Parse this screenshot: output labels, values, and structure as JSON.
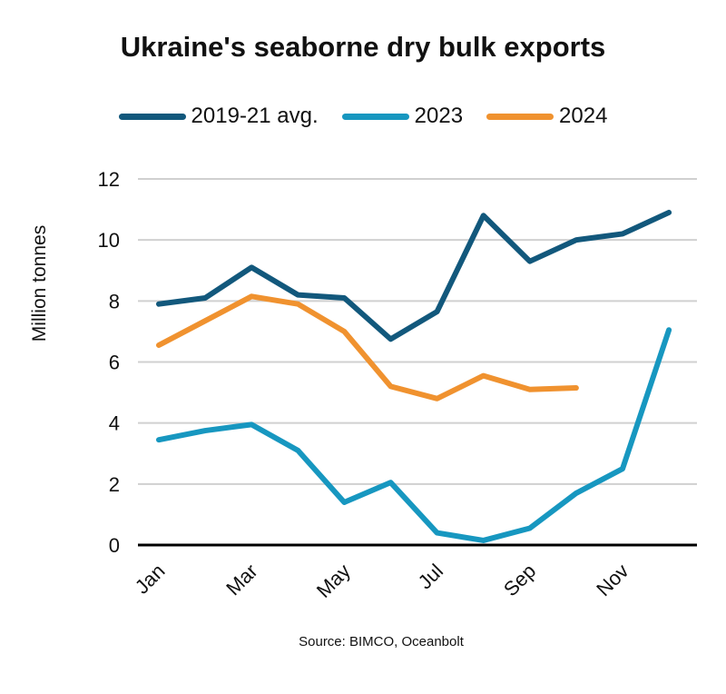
{
  "chart_data": {
    "type": "line",
    "title": "Ukraine's seaborne dry bulk exports",
    "ylabel": "Million tonnes",
    "xlabel": "",
    "source": "Source: BIMCO, Oceanbolt",
    "ylim": [
      0,
      12
    ],
    "yticks": [
      "0",
      "2",
      "4",
      "6",
      "8",
      "10",
      "12"
    ],
    "grid": true,
    "legend": "top",
    "categories": [
      "Jan",
      "Feb",
      "Mar",
      "Apr",
      "May",
      "Jun",
      "Jul",
      "Aug",
      "Sep",
      "Oct",
      "Nov",
      "Dec"
    ],
    "xtick_labels": [
      "Jan",
      "Mar",
      "May",
      "Jul",
      "Sep",
      "Nov"
    ],
    "series": [
      {
        "name": "2019-21 avg.",
        "color": "#12587c",
        "values": [
          7.9,
          8.1,
          9.1,
          8.2,
          8.1,
          6.75,
          7.65,
          10.8,
          9.3,
          10.0,
          10.2,
          10.9
        ]
      },
      {
        "name": "2023",
        "color": "#1797c0",
        "values": [
          3.45,
          3.75,
          3.95,
          3.1,
          1.4,
          2.05,
          0.4,
          0.15,
          0.55,
          1.7,
          2.5,
          7.05
        ]
      },
      {
        "name": "2024",
        "color": "#f0922f",
        "values": [
          6.55,
          7.35,
          8.15,
          7.9,
          7.0,
          5.2,
          4.8,
          5.55,
          5.1,
          5.15,
          null,
          null
        ]
      }
    ]
  }
}
